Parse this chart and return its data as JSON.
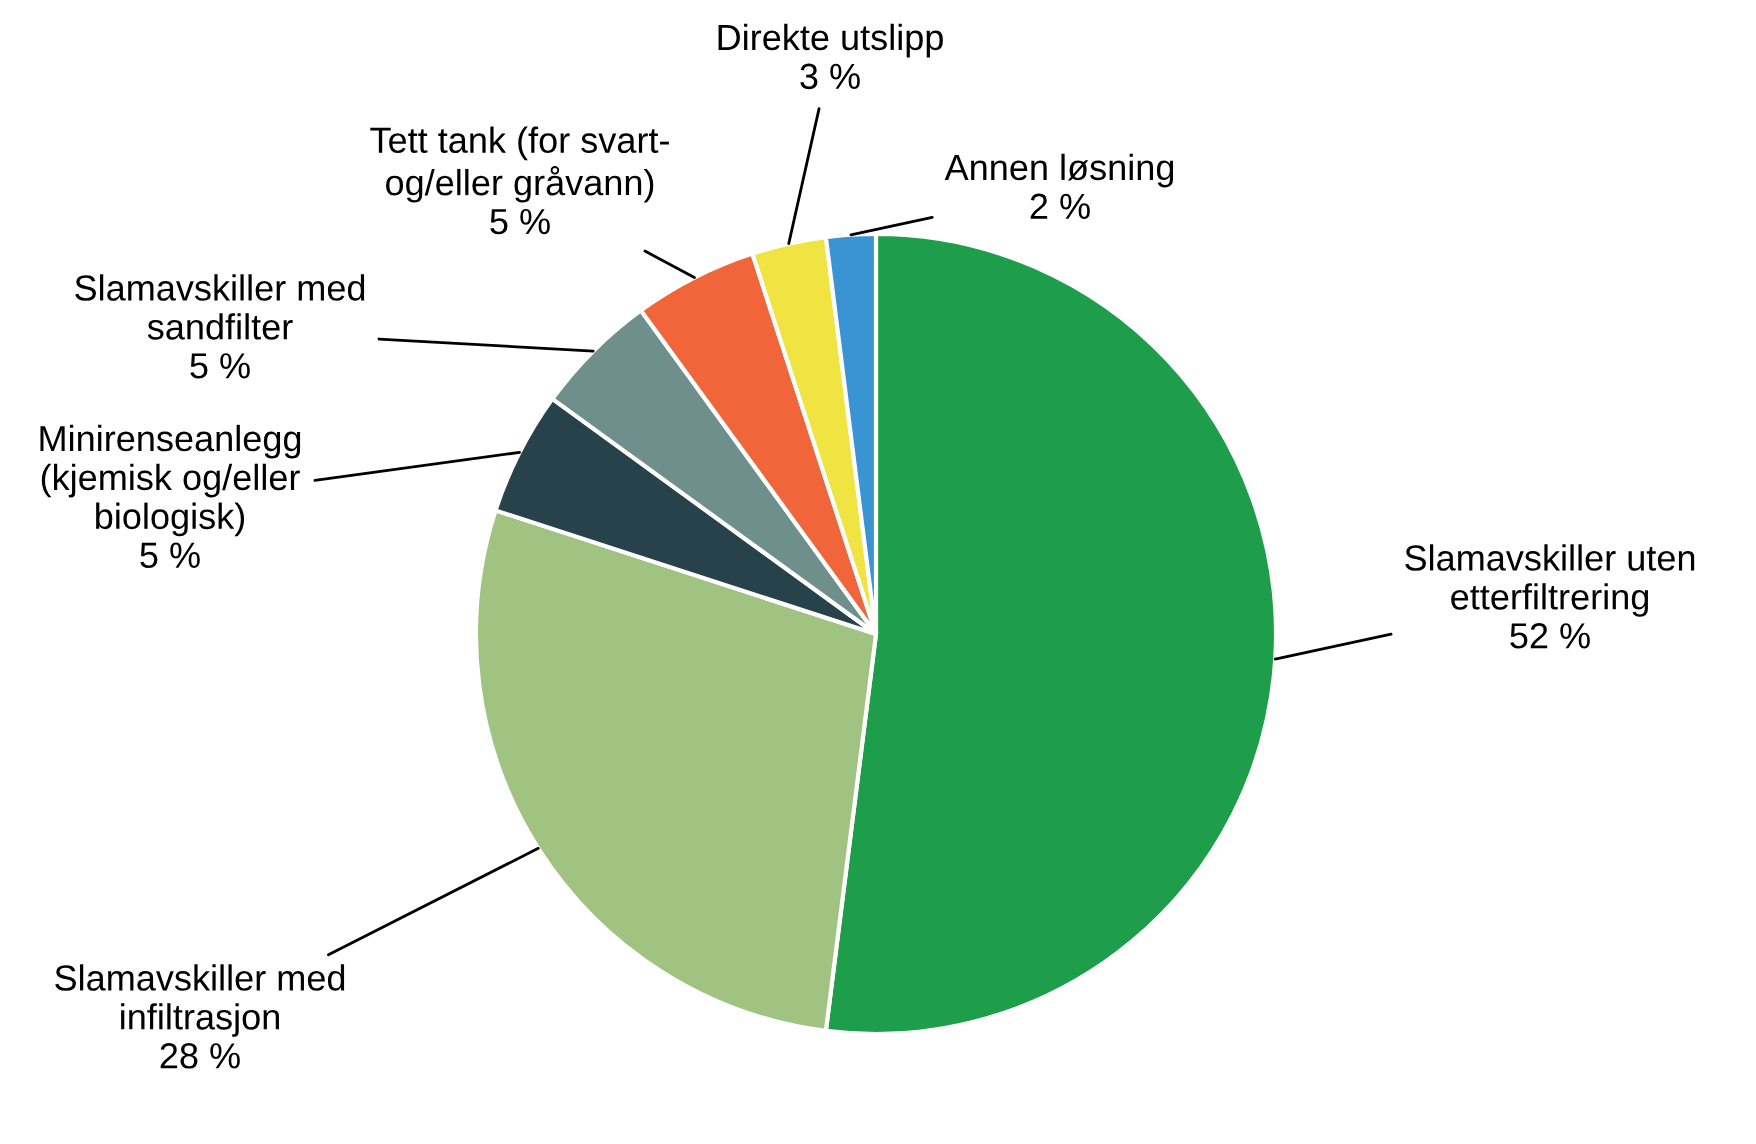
{
  "chart_data": {
    "type": "pie",
    "categories": [
      "Slamavskiller uten\netterfiltrering",
      "Slamavskiller med\ninfiltrasjon",
      "Minirenseanlegg\n(kjemisk og/eller\nbiologisk)",
      "Slamavskiller med\nsandfilter",
      "Tett tank (for svart-\nog/eller gråvann)",
      "Direkte utslipp",
      "Annen løsning"
    ],
    "values": [
      52,
      28,
      5,
      5,
      5,
      3,
      2
    ],
    "value_labels": [
      "52 %",
      "28 %",
      "5 %",
      "5 %",
      "5 %",
      "3 %",
      "2 %"
    ],
    "colors": [
      "#1e9e4a",
      "#a0c382",
      "#27424a",
      "#6e8f8c",
      "#f0663a",
      "#f0e442",
      "#3a93d3"
    ]
  }
}
